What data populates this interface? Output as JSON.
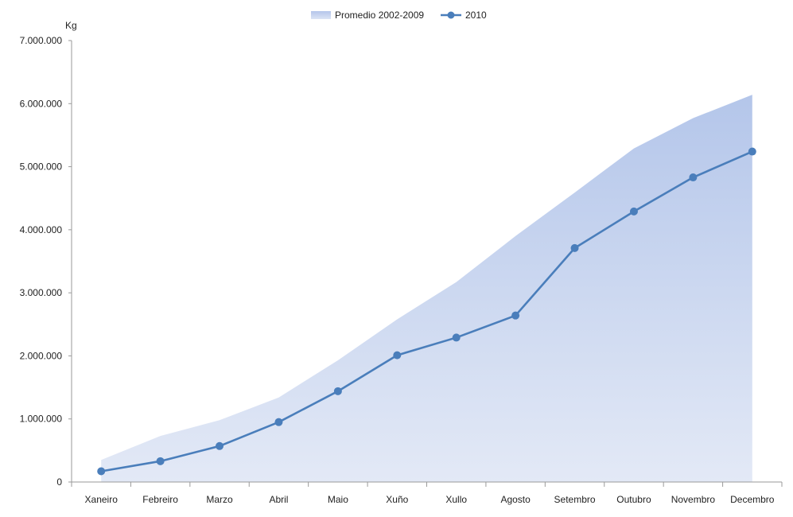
{
  "chart_data": {
    "type": "area",
    "ylabel": "Kg",
    "ylim": [
      0,
      7000000
    ],
    "yticks": [
      0,
      1000000,
      2000000,
      3000000,
      4000000,
      5000000,
      6000000,
      7000000
    ],
    "ytick_labels": [
      "0",
      "1.000.000",
      "2.000.000",
      "3.000.000",
      "4.000.000",
      "5.000.000",
      "6.000.000",
      "7.000.000"
    ],
    "categories": [
      "Xaneiro",
      "Febreiro",
      "Marzo",
      "Abril",
      "Maio",
      "Xuño",
      "Xullo",
      "Agosto",
      "Setembro",
      "Outubro",
      "Novembro",
      "Decembro"
    ],
    "legend_position": "top-center",
    "grid": false,
    "series": [
      {
        "name": "Promedio 2002-2009",
        "type": "area",
        "color": "#b4c6ea",
        "values": [
          350000,
          730000,
          980000,
          1340000,
          1930000,
          2580000,
          3170000,
          3900000,
          4590000,
          5290000,
          5770000,
          6140000
        ]
      },
      {
        "name": "2010",
        "type": "line",
        "color": "#4a7ebb",
        "values": [
          170000,
          330000,
          570000,
          950000,
          1440000,
          2010000,
          2290000,
          2640000,
          3710000,
          4290000,
          4830000,
          5240000
        ]
      }
    ]
  }
}
